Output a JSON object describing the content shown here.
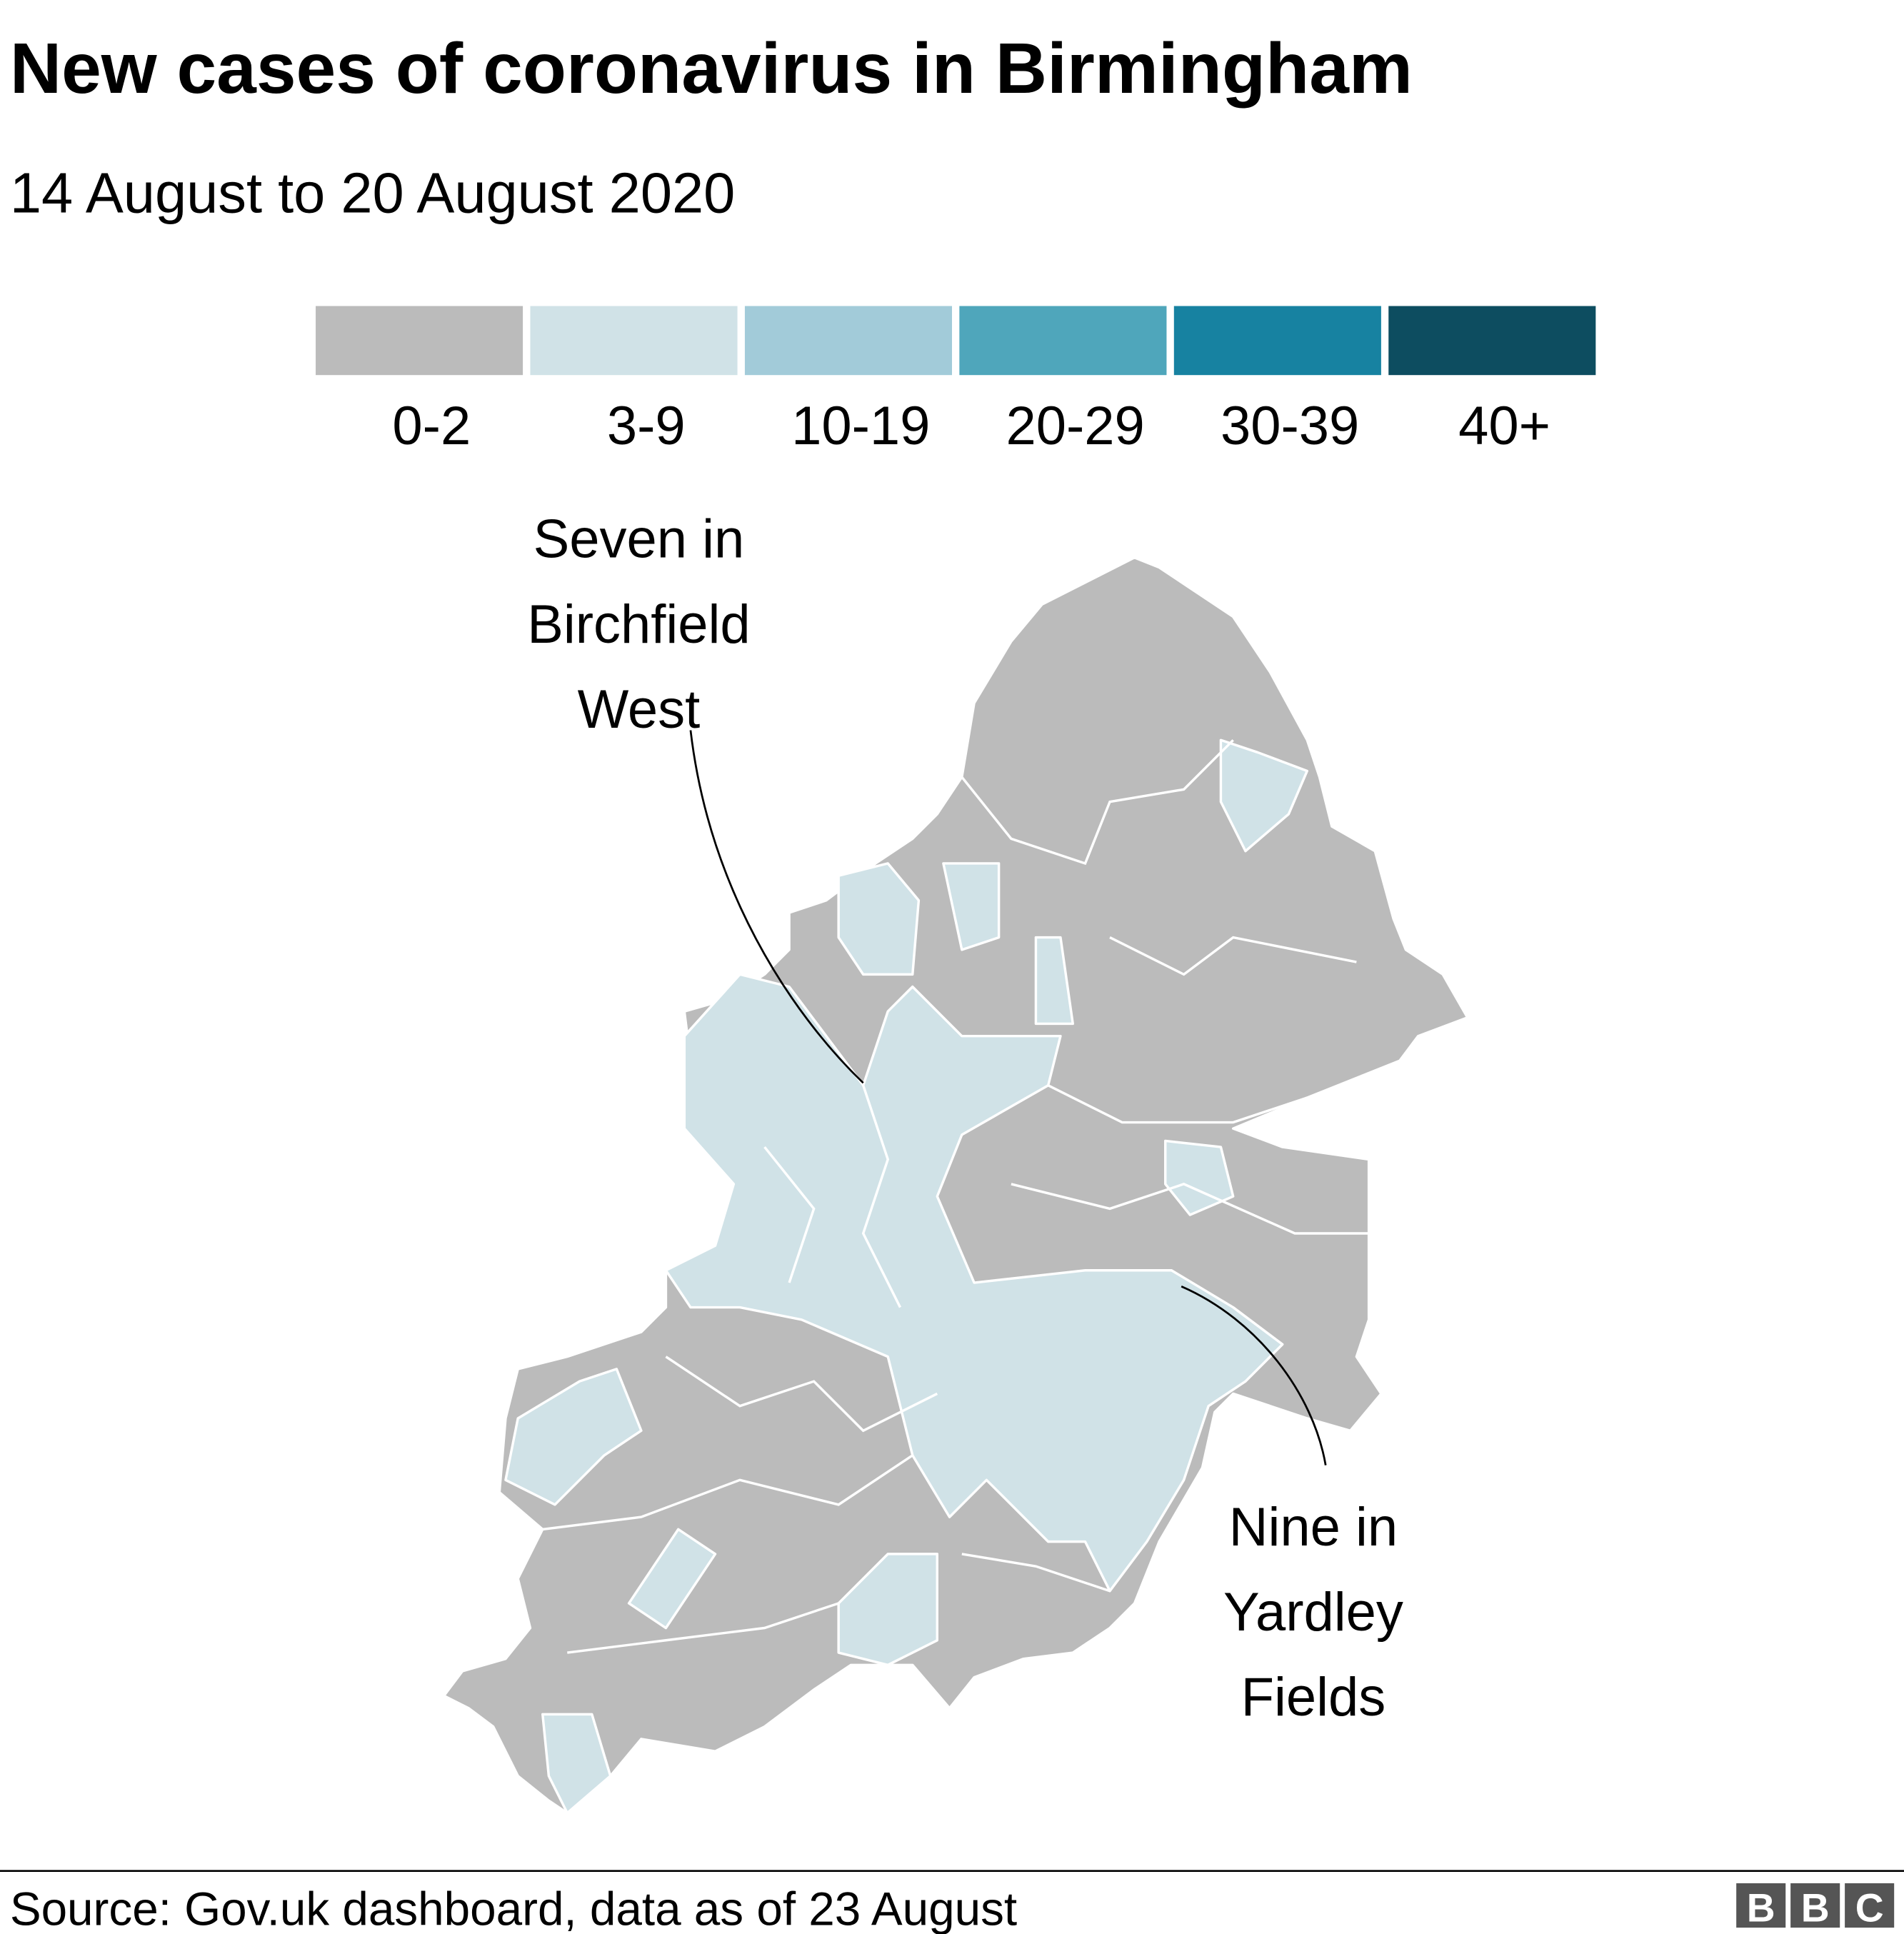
{
  "header": {
    "title": "New cases of coronavirus in Birmingham",
    "subtitle": "14 August to 20 August 2020"
  },
  "legend": {
    "items": [
      {
        "label": "0-2",
        "color": "#bbbbbb"
      },
      {
        "label": "3-9",
        "color": "#d0e2e7"
      },
      {
        "label": "10-19",
        "color": "#a2cbd9"
      },
      {
        "label": "20-29",
        "color": "#4fa6bb"
      },
      {
        "label": "30-39",
        "color": "#1782a1"
      },
      {
        "label": "40+",
        "color": "#0d4d60"
      }
    ]
  },
  "annotations": [
    {
      "lines": [
        "Seven in",
        "Birchfield",
        "West"
      ]
    },
    {
      "lines": [
        "Nine in",
        "Yardley",
        "Fields"
      ]
    }
  ],
  "footer": {
    "source": "Source: Gov.uk dashboard, data as of 23 August",
    "logo": [
      "B",
      "B",
      "C"
    ]
  }
}
